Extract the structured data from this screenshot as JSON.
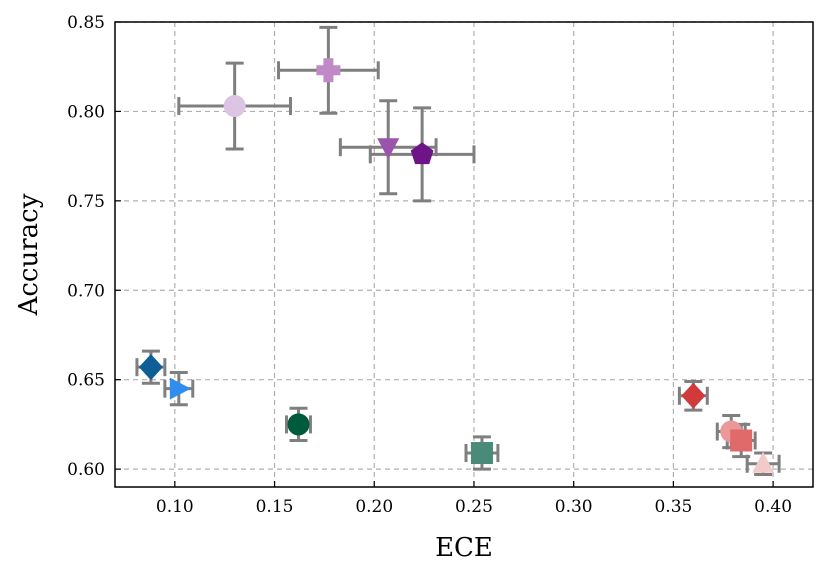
{
  "chart_data": {
    "type": "scatter",
    "title": "",
    "xlabel": "ECE",
    "ylabel": "Accuracy",
    "xlim": [
      0.07,
      0.42
    ],
    "ylim": [
      0.59,
      0.85
    ],
    "xticks": [
      0.1,
      0.15,
      0.2,
      0.25,
      0.3,
      0.35,
      0.4
    ],
    "xtick_labels": [
      "0.10",
      "0.15",
      "0.20",
      "0.25",
      "0.30",
      "0.35",
      "0.40"
    ],
    "yticks": [
      0.6,
      0.65,
      0.7,
      0.75,
      0.8,
      0.85
    ],
    "ytick_labels": [
      "0.60",
      "0.65",
      "0.70",
      "0.75",
      "0.80",
      "0.85"
    ],
    "grid": true,
    "error_bar_color": "#7f7f7f",
    "points": [
      {
        "x": 0.13,
        "y": 0.803,
        "xerr": 0.028,
        "yerr": 0.024,
        "marker": "circle",
        "color": "#dcc5e3"
      },
      {
        "x": 0.177,
        "y": 0.823,
        "xerr": 0.025,
        "yerr": 0.024,
        "marker": "plus",
        "color": "#c08ac6"
      },
      {
        "x": 0.207,
        "y": 0.78,
        "xerr": 0.024,
        "yerr": 0.026,
        "marker": "triangle-down",
        "color": "#9b54ab"
      },
      {
        "x": 0.224,
        "y": 0.776,
        "xerr": 0.026,
        "yerr": 0.026,
        "marker": "pentagon",
        "color": "#6e1487"
      },
      {
        "x": 0.088,
        "y": 0.657,
        "xerr": 0.007,
        "yerr": 0.009,
        "marker": "diamond",
        "color": "#0d5f96"
      },
      {
        "x": 0.102,
        "y": 0.645,
        "xerr": 0.007,
        "yerr": 0.009,
        "marker": "triangle-right",
        "color": "#2e8ef0"
      },
      {
        "x": 0.162,
        "y": 0.625,
        "xerr": 0.006,
        "yerr": 0.009,
        "marker": "circle",
        "color": "#005a3c"
      },
      {
        "x": 0.254,
        "y": 0.609,
        "xerr": 0.008,
        "yerr": 0.009,
        "marker": "square",
        "color": "#4a8a78"
      },
      {
        "x": 0.36,
        "y": 0.641,
        "xerr": 0.007,
        "yerr": 0.008,
        "marker": "diamond",
        "color": "#d13a3a"
      },
      {
        "x": 0.379,
        "y": 0.621,
        "xerr": 0.007,
        "yerr": 0.009,
        "marker": "circle",
        "color": "#ea9898"
      },
      {
        "x": 0.384,
        "y": 0.616,
        "xerr": 0.007,
        "yerr": 0.009,
        "marker": "square",
        "color": "#e06a6a"
      },
      {
        "x": 0.395,
        "y": 0.603,
        "xerr": 0.008,
        "yerr": 0.006,
        "marker": "triangle-up",
        "color": "#f3caca"
      }
    ]
  }
}
